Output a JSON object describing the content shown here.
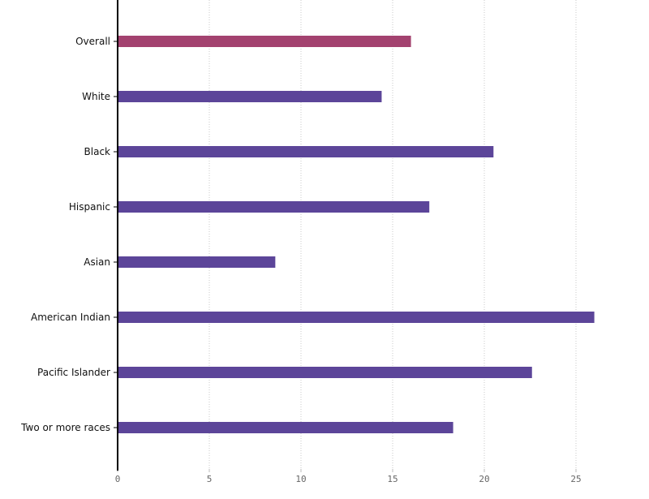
{
  "chart_data": {
    "type": "bar",
    "orientation": "horizontal",
    "title": "",
    "xlabel": "",
    "ylabel": "",
    "categories": [
      "Overall",
      "White",
      "Black",
      "Hispanic",
      "Asian",
      "American Indian",
      "Pacific Islander",
      "Two or more races"
    ],
    "values": [
      16.0,
      14.4,
      20.5,
      17.0,
      8.6,
      26.0,
      22.6,
      18.3
    ],
    "highlight": [
      "Overall"
    ],
    "xlim": [
      0,
      28
    ],
    "xticks": [
      "0",
      "5",
      "10",
      "15",
      "20",
      "25"
    ],
    "xtick_values": [
      0,
      5,
      10,
      15,
      20,
      25
    ],
    "grid": "vertical dotted",
    "legend": "none"
  },
  "colors": {
    "highlight_bar": "#a3426f",
    "bar": "#5c4599",
    "axis": "#000000",
    "grid": "#c8c8c8"
  }
}
